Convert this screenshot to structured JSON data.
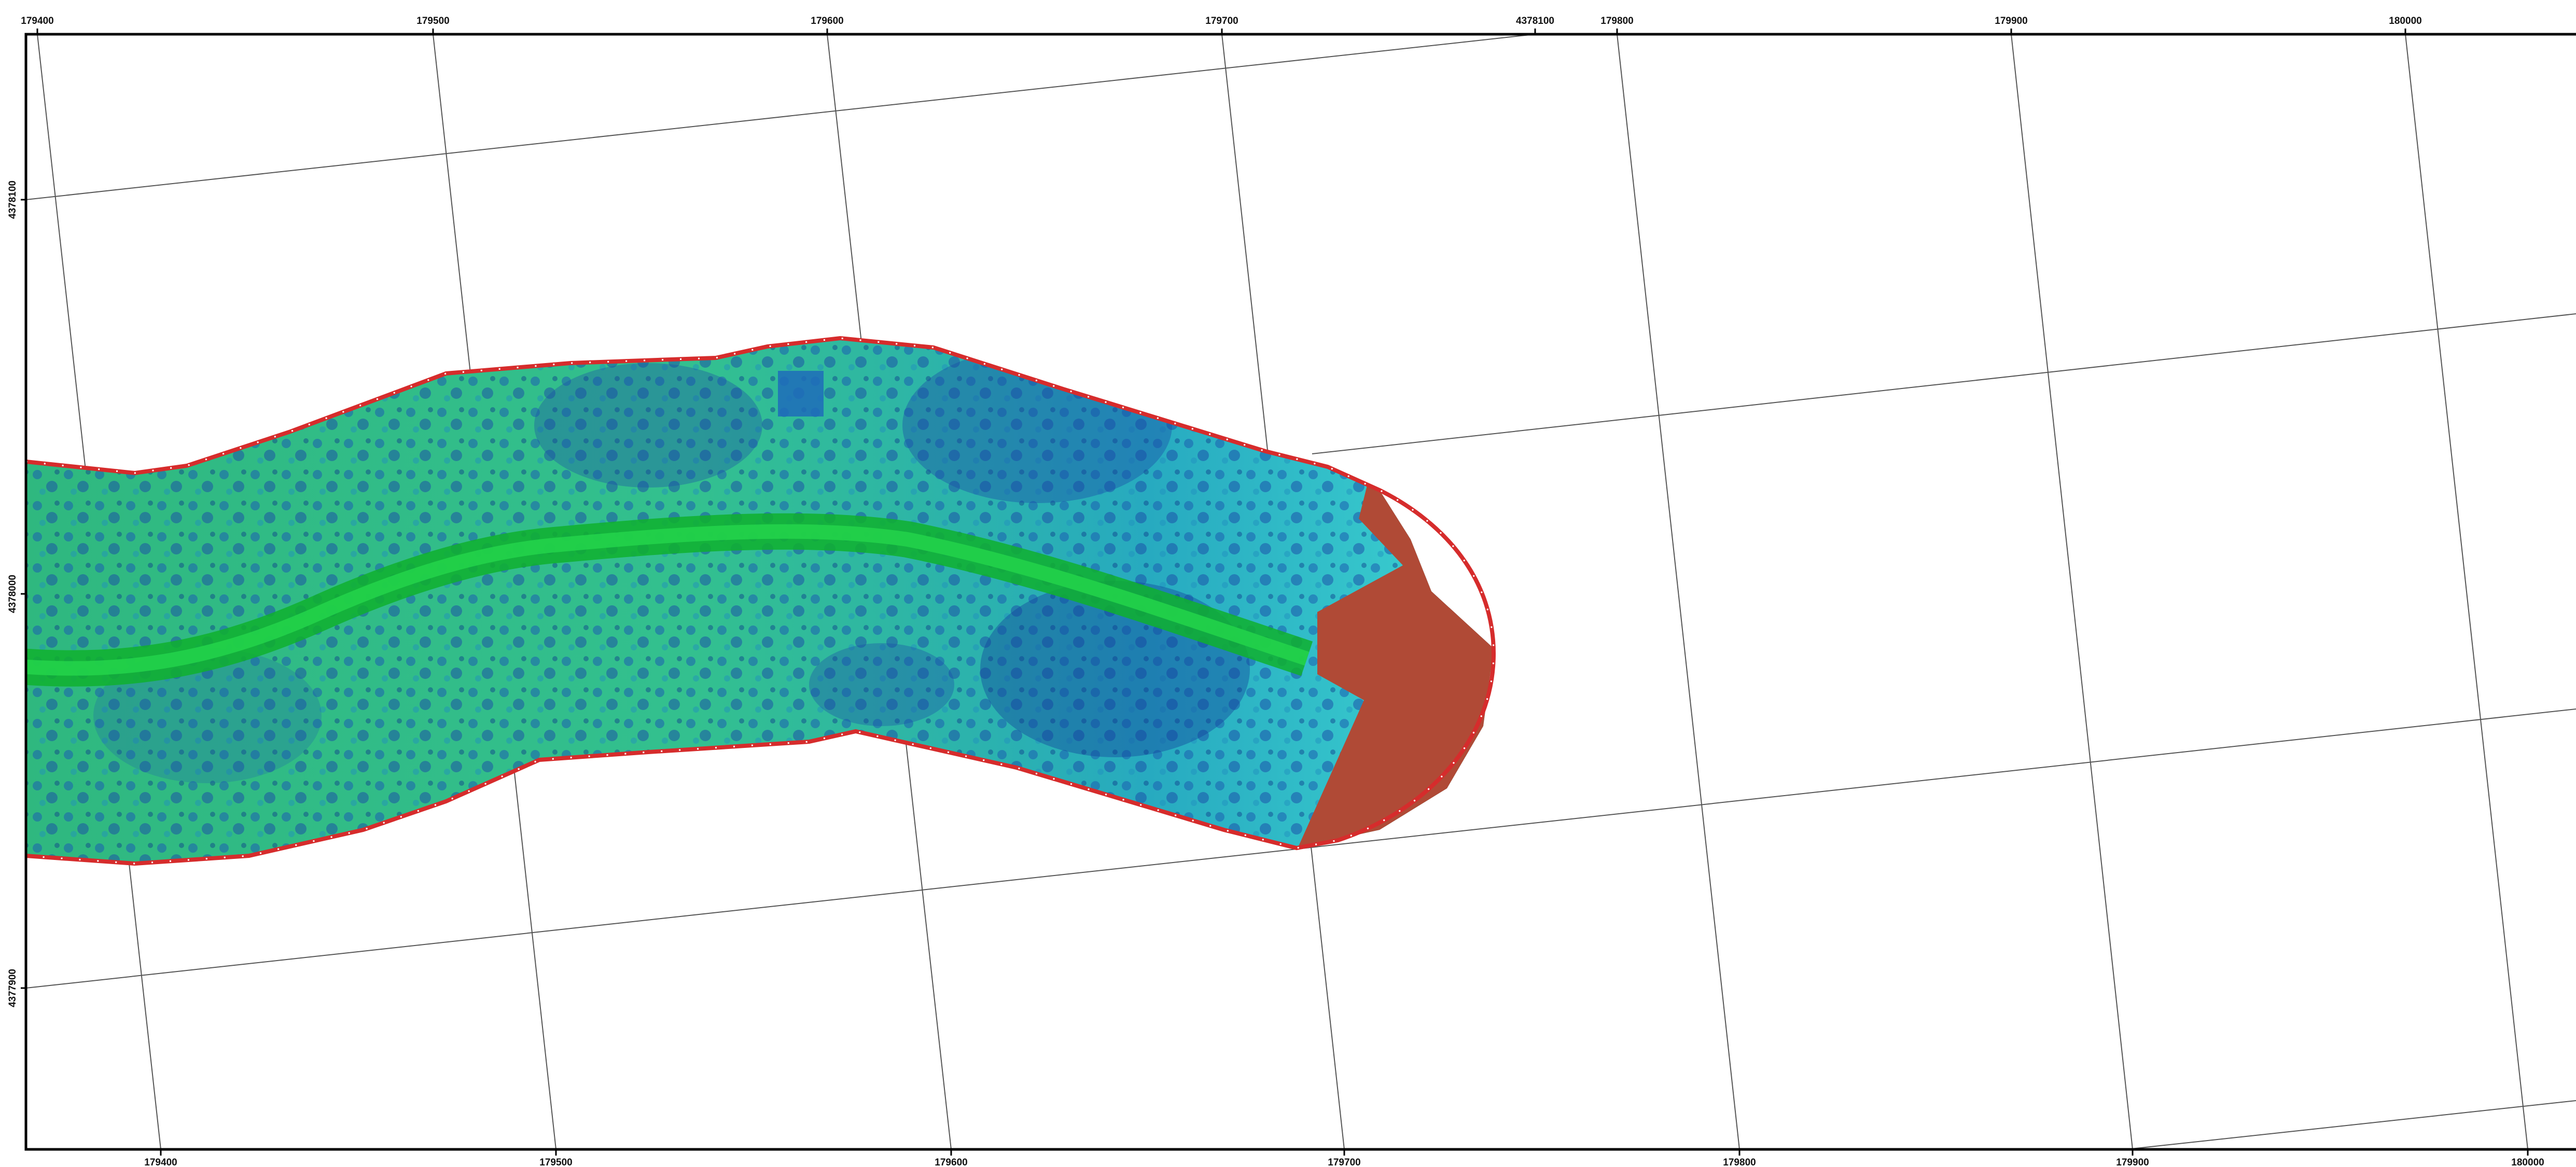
{
  "map": {
    "top_ticks": [
      "179400",
      "179500",
      "179600",
      "179700",
      "4378100",
      "179800",
      "179900",
      "180000"
    ],
    "bottom_ticks": [
      "179400",
      "179500",
      "179600",
      "179700",
      "179800",
      "179900",
      "180000"
    ],
    "left_ticks": [
      "4378100",
      "4378000",
      "4377900"
    ],
    "colors": {
      "frame": "#000000",
      "grid": "#555555",
      "boundary": "#d62c2c",
      "terrain_low": "#0f9f3a",
      "terrain_mid": "#2fc48d",
      "terrain_high": "#1a4aa8",
      "clipped_zone": "#b04a36"
    },
    "icons": [
      "survey-boundary-outline",
      "hillshade-dem-raster",
      "graticule"
    ]
  }
}
